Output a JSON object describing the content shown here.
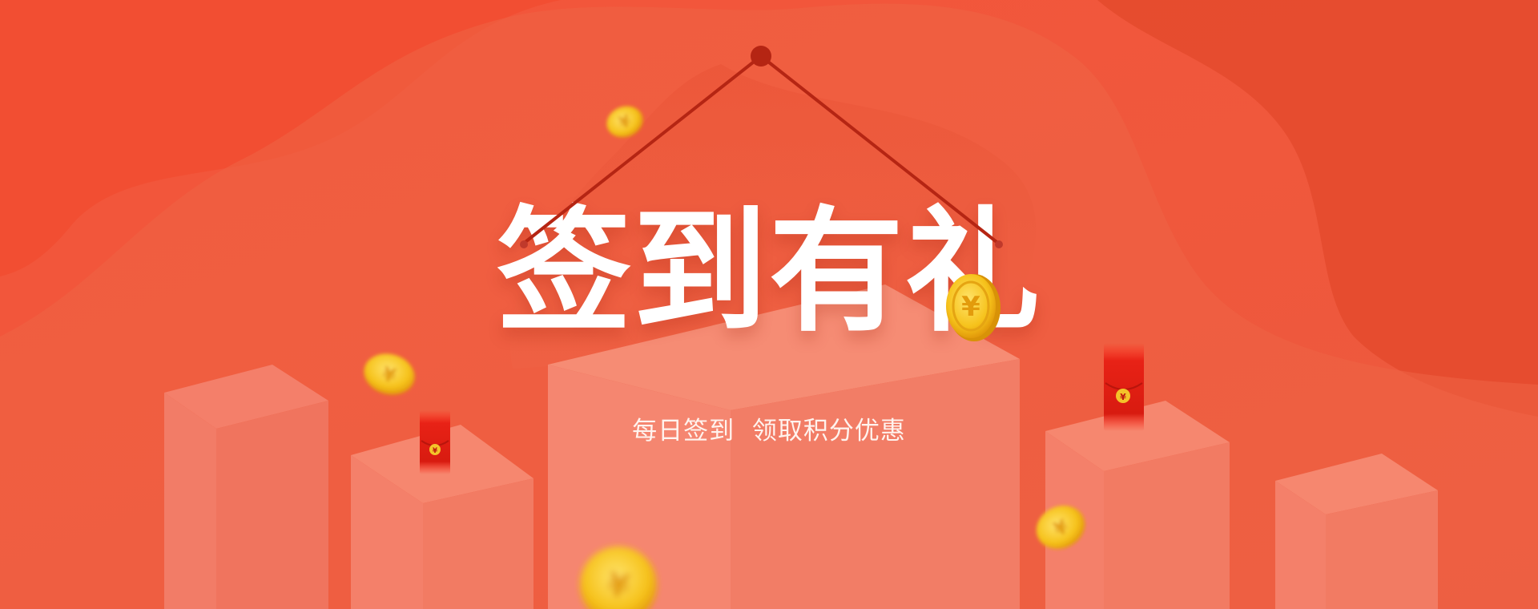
{
  "banner": {
    "title": "签到有礼",
    "subtitle": "每日签到  领取积分优惠"
  },
  "icons": {
    "coin": "yen-coin-icon",
    "red_envelope": "red-envelope-icon",
    "hanging_cord": "hanging-cord-icon"
  },
  "colors": {
    "background": "#ef5a3c",
    "accent_red": "#d61e10",
    "coin_gold": "#f5c21a",
    "text": "#ffffff"
  }
}
